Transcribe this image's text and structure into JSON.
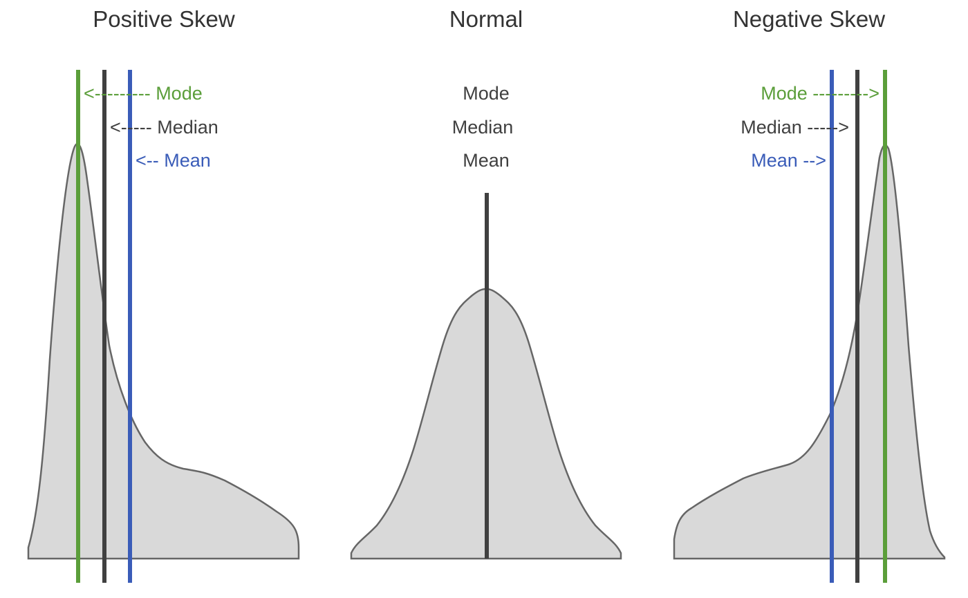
{
  "colors": {
    "mode": "#5b9e3a",
    "median": "#404040",
    "mean": "#3a5cb8",
    "normal_text": "#404040",
    "fill": "#d9d9d9",
    "outline": "#666666"
  },
  "chart_data": [
    {
      "type": "area",
      "title": "Positive Skew",
      "markers": [
        {
          "name": "mode",
          "label": "<--------- Mode"
        },
        {
          "name": "median",
          "label": "<----- Median"
        },
        {
          "name": "mean",
          "label": "<-- Mean"
        }
      ]
    },
    {
      "type": "area",
      "title": "Normal",
      "markers": [
        {
          "name": "mode",
          "label": "Mode"
        },
        {
          "name": "median",
          "label": "Median"
        },
        {
          "name": "mean",
          "label": "Mean"
        }
      ]
    },
    {
      "type": "area",
      "title": "Negative Skew",
      "markers": [
        {
          "name": "mode",
          "label": "Mode --------->"
        },
        {
          "name": "median",
          "label": "Median ----->"
        },
        {
          "name": "mean",
          "label": "Mean -->"
        }
      ]
    }
  ]
}
